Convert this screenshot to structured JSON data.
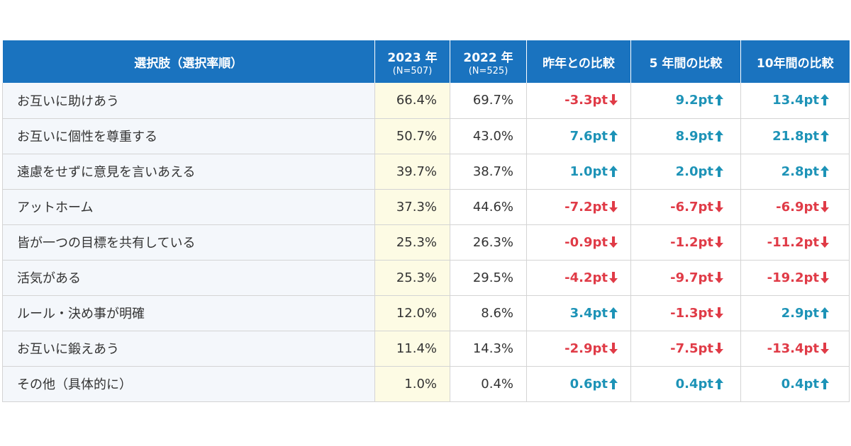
{
  "colors": {
    "header_bg": "#1a73bf",
    "up": "#1d93b7",
    "down": "#e03b47",
    "col2023_bg": "#fdfbe4",
    "label_bg": "#f4f7fb"
  },
  "header": {
    "label": "選択肢（選択率順）",
    "y2023": "2023 年",
    "y2023_n": "(N=507)",
    "y2022": "2022 年",
    "y2022_n": "(N=525)",
    "vs_last_year": "昨年との比較",
    "vs_5y": "5 年間の比較",
    "vs_10y": "10年間の比較"
  },
  "chart_data": {
    "type": "table",
    "columns": [
      "選択肢（選択率順）",
      "2023 年 (N=507)",
      "2022 年 (N=525)",
      "昨年との比較",
      "5 年間の比較",
      "10年間の比較"
    ],
    "rows": [
      {
        "label": "お互いに助けあう",
        "v2023": "66.4%",
        "v2022": "69.7%",
        "d1": "-3.3pt",
        "d1_dir": "down",
        "d5": "9.2pt",
        "d5_dir": "up",
        "d10": "13.4pt",
        "d10_dir": "up"
      },
      {
        "label": "お互いに個性を尊重する",
        "v2023": "50.7%",
        "v2022": "43.0%",
        "d1": "7.6pt",
        "d1_dir": "up",
        "d5": "8.9pt",
        "d5_dir": "up",
        "d10": "21.8pt",
        "d10_dir": "up"
      },
      {
        "label": "遠慮をせずに意見を言いあえる",
        "v2023": "39.7%",
        "v2022": "38.7%",
        "d1": "1.0pt",
        "d1_dir": "up",
        "d5": "2.0pt",
        "d5_dir": "up",
        "d10": "2.8pt",
        "d10_dir": "up"
      },
      {
        "label": "アットホーム",
        "v2023": "37.3%",
        "v2022": "44.6%",
        "d1": "-7.2pt",
        "d1_dir": "down",
        "d5": "-6.7pt",
        "d5_dir": "down",
        "d10": "-6.9pt",
        "d10_dir": "down"
      },
      {
        "label": "皆が一つの目標を共有している",
        "v2023": "25.3%",
        "v2022": "26.3%",
        "d1": "-0.9pt",
        "d1_dir": "down",
        "d5": "-1.2pt",
        "d5_dir": "down",
        "d10": "-11.2pt",
        "d10_dir": "down"
      },
      {
        "label": "活気がある",
        "v2023": "25.3%",
        "v2022": "29.5%",
        "d1": "-4.2pt",
        "d1_dir": "down",
        "d5": "-9.7pt",
        "d5_dir": "down",
        "d10": "-19.2pt",
        "d10_dir": "down"
      },
      {
        "label": "ルール・決め事が明確",
        "v2023": "12.0%",
        "v2022": "8.6%",
        "d1": "3.4pt",
        "d1_dir": "up",
        "d5": "-1.3pt",
        "d5_dir": "down",
        "d10": "2.9pt",
        "d10_dir": "up"
      },
      {
        "label": "お互いに鍛えあう",
        "v2023": "11.4%",
        "v2022": "14.3%",
        "d1": "-2.9pt",
        "d1_dir": "down",
        "d5": "-7.5pt",
        "d5_dir": "down",
        "d10": "-13.4pt",
        "d10_dir": "down"
      },
      {
        "label": "その他（具体的に）",
        "v2023": "1.0%",
        "v2022": "0.4%",
        "d1": "0.6pt",
        "d1_dir": "up",
        "d5": "0.4pt",
        "d5_dir": "up",
        "d10": "0.4pt",
        "d10_dir": "up"
      }
    ]
  }
}
